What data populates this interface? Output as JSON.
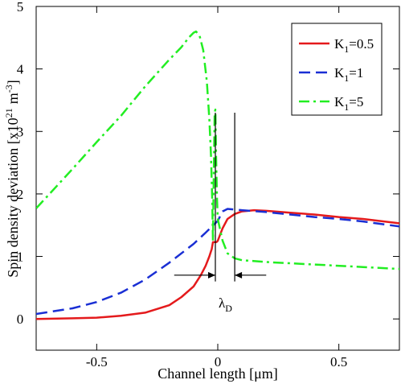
{
  "chart_data": {
    "type": "line",
    "title": "",
    "xlabel": "Channel length [μm]",
    "ylabel": "Spin density deviation [x10",
    "ylabel_exp": "21",
    "ylabel_unit": "m",
    "ylabel_unit_exp": "-3",
    "ylabel_close": "]",
    "xlim": [
      -0.75,
      0.75
    ],
    "ylim": [
      -0.5,
      5
    ],
    "xticks": [
      -0.5,
      0,
      0.5
    ],
    "xtick_labels": [
      "-0.5",
      "0",
      "0.5"
    ],
    "yticks": [
      0,
      1,
      2,
      3,
      4,
      5
    ],
    "ytick_labels": [
      "0",
      "1",
      "2",
      "3",
      "4",
      "5"
    ],
    "grid": false,
    "legend_position": "top-right",
    "series": [
      {
        "name": "K",
        "name_sub": "1",
        "name_suffix": "=0.5",
        "color": "#e41a1c",
        "dash": "solid",
        "points": [
          [
            -0.75,
            0.0
          ],
          [
            -0.6,
            0.01
          ],
          [
            -0.5,
            0.02
          ],
          [
            -0.4,
            0.05
          ],
          [
            -0.3,
            0.1
          ],
          [
            -0.2,
            0.22
          ],
          [
            -0.15,
            0.35
          ],
          [
            -0.1,
            0.52
          ],
          [
            -0.07,
            0.7
          ],
          [
            -0.05,
            0.85
          ],
          [
            -0.035,
            1.0
          ],
          [
            -0.025,
            1.12
          ],
          [
            -0.02,
            1.23
          ],
          [
            -0.01,
            1.23
          ],
          [
            -0.005,
            1.23
          ],
          [
            0.0,
            1.25
          ],
          [
            0.02,
            1.45
          ],
          [
            0.04,
            1.6
          ],
          [
            0.07,
            1.68
          ],
          [
            0.1,
            1.72
          ],
          [
            0.15,
            1.74
          ],
          [
            0.2,
            1.73
          ],
          [
            0.3,
            1.7
          ],
          [
            0.4,
            1.67
          ],
          [
            0.5,
            1.63
          ],
          [
            0.6,
            1.6
          ],
          [
            0.75,
            1.53
          ]
        ]
      },
      {
        "name": "K",
        "name_sub": "1",
        "name_suffix": "=1",
        "color": "#1a2fd4",
        "dash": "dashed",
        "points": [
          [
            -0.75,
            0.08
          ],
          [
            -0.6,
            0.17
          ],
          [
            -0.5,
            0.27
          ],
          [
            -0.4,
            0.42
          ],
          [
            -0.3,
            0.63
          ],
          [
            -0.2,
            0.9
          ],
          [
            -0.1,
            1.2
          ],
          [
            -0.05,
            1.38
          ],
          [
            0.0,
            1.57
          ],
          [
            0.02,
            1.72
          ],
          [
            0.04,
            1.76
          ],
          [
            0.1,
            1.74
          ],
          [
            0.2,
            1.71
          ],
          [
            0.3,
            1.67
          ],
          [
            0.4,
            1.63
          ],
          [
            0.5,
            1.6
          ],
          [
            0.6,
            1.56
          ],
          [
            0.75,
            1.48
          ]
        ]
      },
      {
        "name": "K",
        "name_sub": "1",
        "name_suffix": "=5",
        "color": "#22ee22",
        "dash": "dashdot",
        "points": [
          [
            -0.75,
            1.77
          ],
          [
            -0.7,
            1.98
          ],
          [
            -0.6,
            2.4
          ],
          [
            -0.5,
            2.83
          ],
          [
            -0.4,
            3.25
          ],
          [
            -0.3,
            3.72
          ],
          [
            -0.2,
            4.15
          ],
          [
            -0.15,
            4.35
          ],
          [
            -0.12,
            4.5
          ],
          [
            -0.1,
            4.58
          ],
          [
            -0.09,
            4.6
          ],
          [
            -0.075,
            4.53
          ],
          [
            -0.06,
            4.3
          ],
          [
            -0.045,
            3.8
          ],
          [
            -0.035,
            3.2
          ],
          [
            -0.028,
            2.6
          ],
          [
            -0.023,
            1.9
          ],
          [
            -0.02,
            1.25
          ],
          [
            -0.017,
            2.2
          ],
          [
            -0.013,
            3.3
          ],
          [
            -0.01,
            3.35
          ],
          [
            -0.007,
            2.6
          ],
          [
            -0.003,
            1.9
          ],
          [
            0.0,
            1.6
          ],
          [
            0.02,
            1.25
          ],
          [
            0.04,
            1.05
          ],
          [
            0.07,
            0.97
          ],
          [
            0.1,
            0.94
          ],
          [
            0.2,
            0.91
          ],
          [
            0.4,
            0.87
          ],
          [
            0.6,
            0.83
          ],
          [
            0.75,
            0.8
          ]
        ]
      }
    ],
    "annotation": {
      "symbol": "λ",
      "sub": "D",
      "arrow_left_x": [
        -0.18,
        -0.01
      ],
      "arrow_right_x": [
        0.2,
        0.07
      ],
      "arrow_y": 0.7,
      "marker_x": [
        -0.01,
        0.07
      ],
      "marker_y": [
        0.6,
        3.3
      ]
    }
  }
}
